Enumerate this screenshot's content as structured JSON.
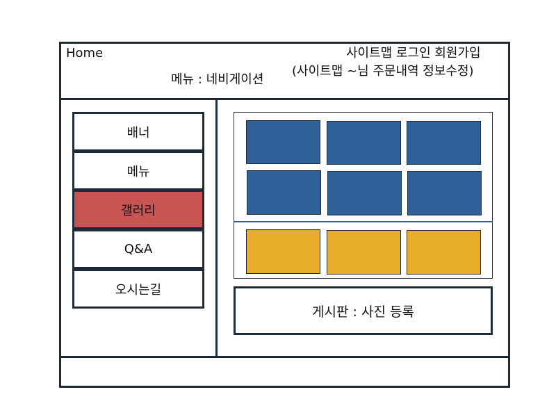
{
  "header": {
    "home": "Home",
    "nav": "메뉴 : 네비게이션",
    "top_links": "사이트맵 로그인 회원가입",
    "top_links_logged_in": "(사이트맵 ~님  주문내역 정보수정)"
  },
  "sidebar": {
    "items": [
      {
        "label": "배너"
      },
      {
        "label": "메뉴"
      },
      {
        "label": "갤러리"
      },
      {
        "label": "Q&A"
      },
      {
        "label": "오시는길"
      }
    ]
  },
  "main": {
    "gallery": {
      "blue_photos": 6,
      "yellow_photos": 3
    },
    "board_label": "게시판 : 사진 등록"
  },
  "colors": {
    "border": "#1d2a38",
    "active_item": "#c85454",
    "photo_blue": "#2f6098",
    "photo_yellow": "#e9ad2c"
  }
}
